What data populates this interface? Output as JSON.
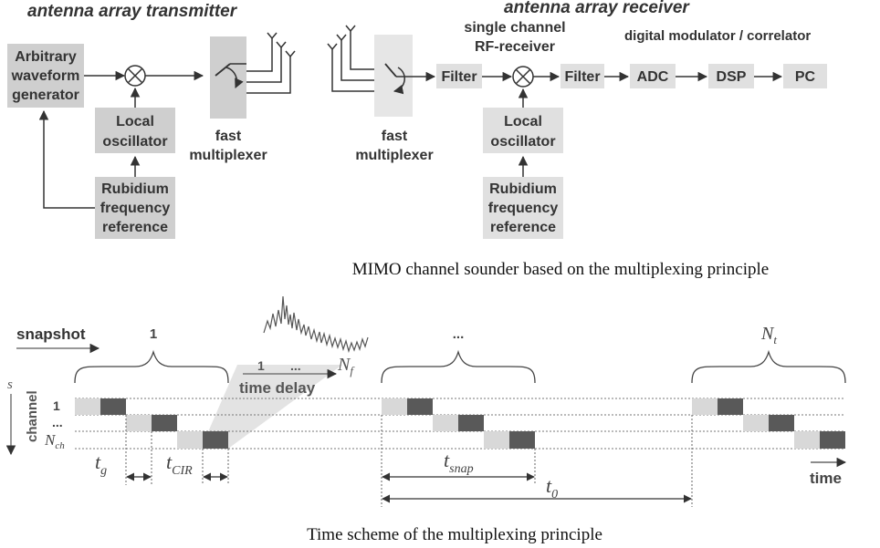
{
  "top_diagram": {
    "transmitter_title": "antenna array transmitter",
    "receiver_title": "antenna array receiver",
    "awg_lines": [
      "Arbitrary",
      "waveform",
      "generator"
    ],
    "tx_lo_lines": [
      "Local",
      "oscillator"
    ],
    "tx_rb_lines": [
      "Rubidium",
      "frequency",
      "reference"
    ],
    "tx_mux_lines": [
      "fast",
      "multiplexer"
    ],
    "rx_mux_lines": [
      "fast",
      "multiplexer"
    ],
    "rf_receiver_lines": [
      "single channel",
      "RF-receiver"
    ],
    "digital_label": "digital modulator / correlator",
    "filter1": "Filter",
    "filter2": "Filter",
    "adc": "ADC",
    "dsp": "DSP",
    "pc": "PC",
    "rx_lo_lines": [
      "Local",
      "oscillator"
    ],
    "rx_rb_lines": [
      "Rubidium",
      "frequency",
      "reference"
    ],
    "caption": "MIMO channel sounder based on the multiplexing principle"
  },
  "bottom_diagram": {
    "snapshot_label": "snapshot",
    "snap_1": "1",
    "snap_dots": "...",
    "snap_nt": "N",
    "snap_nt_sub": "t",
    "freq_1": "1",
    "freq_dots": "...",
    "freq_nf": "N",
    "freq_nf_sub": "f",
    "time_delay": "time delay",
    "channel_label": "channel",
    "channel_s": "s",
    "ch_1": "1",
    "ch_dots": "...",
    "ch_nch": "N",
    "ch_nch_sub": "ch",
    "tg": "t",
    "tg_sub": "g",
    "tcir": "t",
    "tcir_sub": "CIR",
    "tsnap": "t",
    "tsnap_sub": "snap",
    "t0": "t",
    "t0_sub": "0",
    "time_label": "time",
    "caption": "Time scheme of the multiplexing principle"
  },
  "colors": {
    "box_fill": "#cfcfcf",
    "light_block": "#d8d8d8",
    "dark_block": "#595959",
    "line": "#333333"
  }
}
